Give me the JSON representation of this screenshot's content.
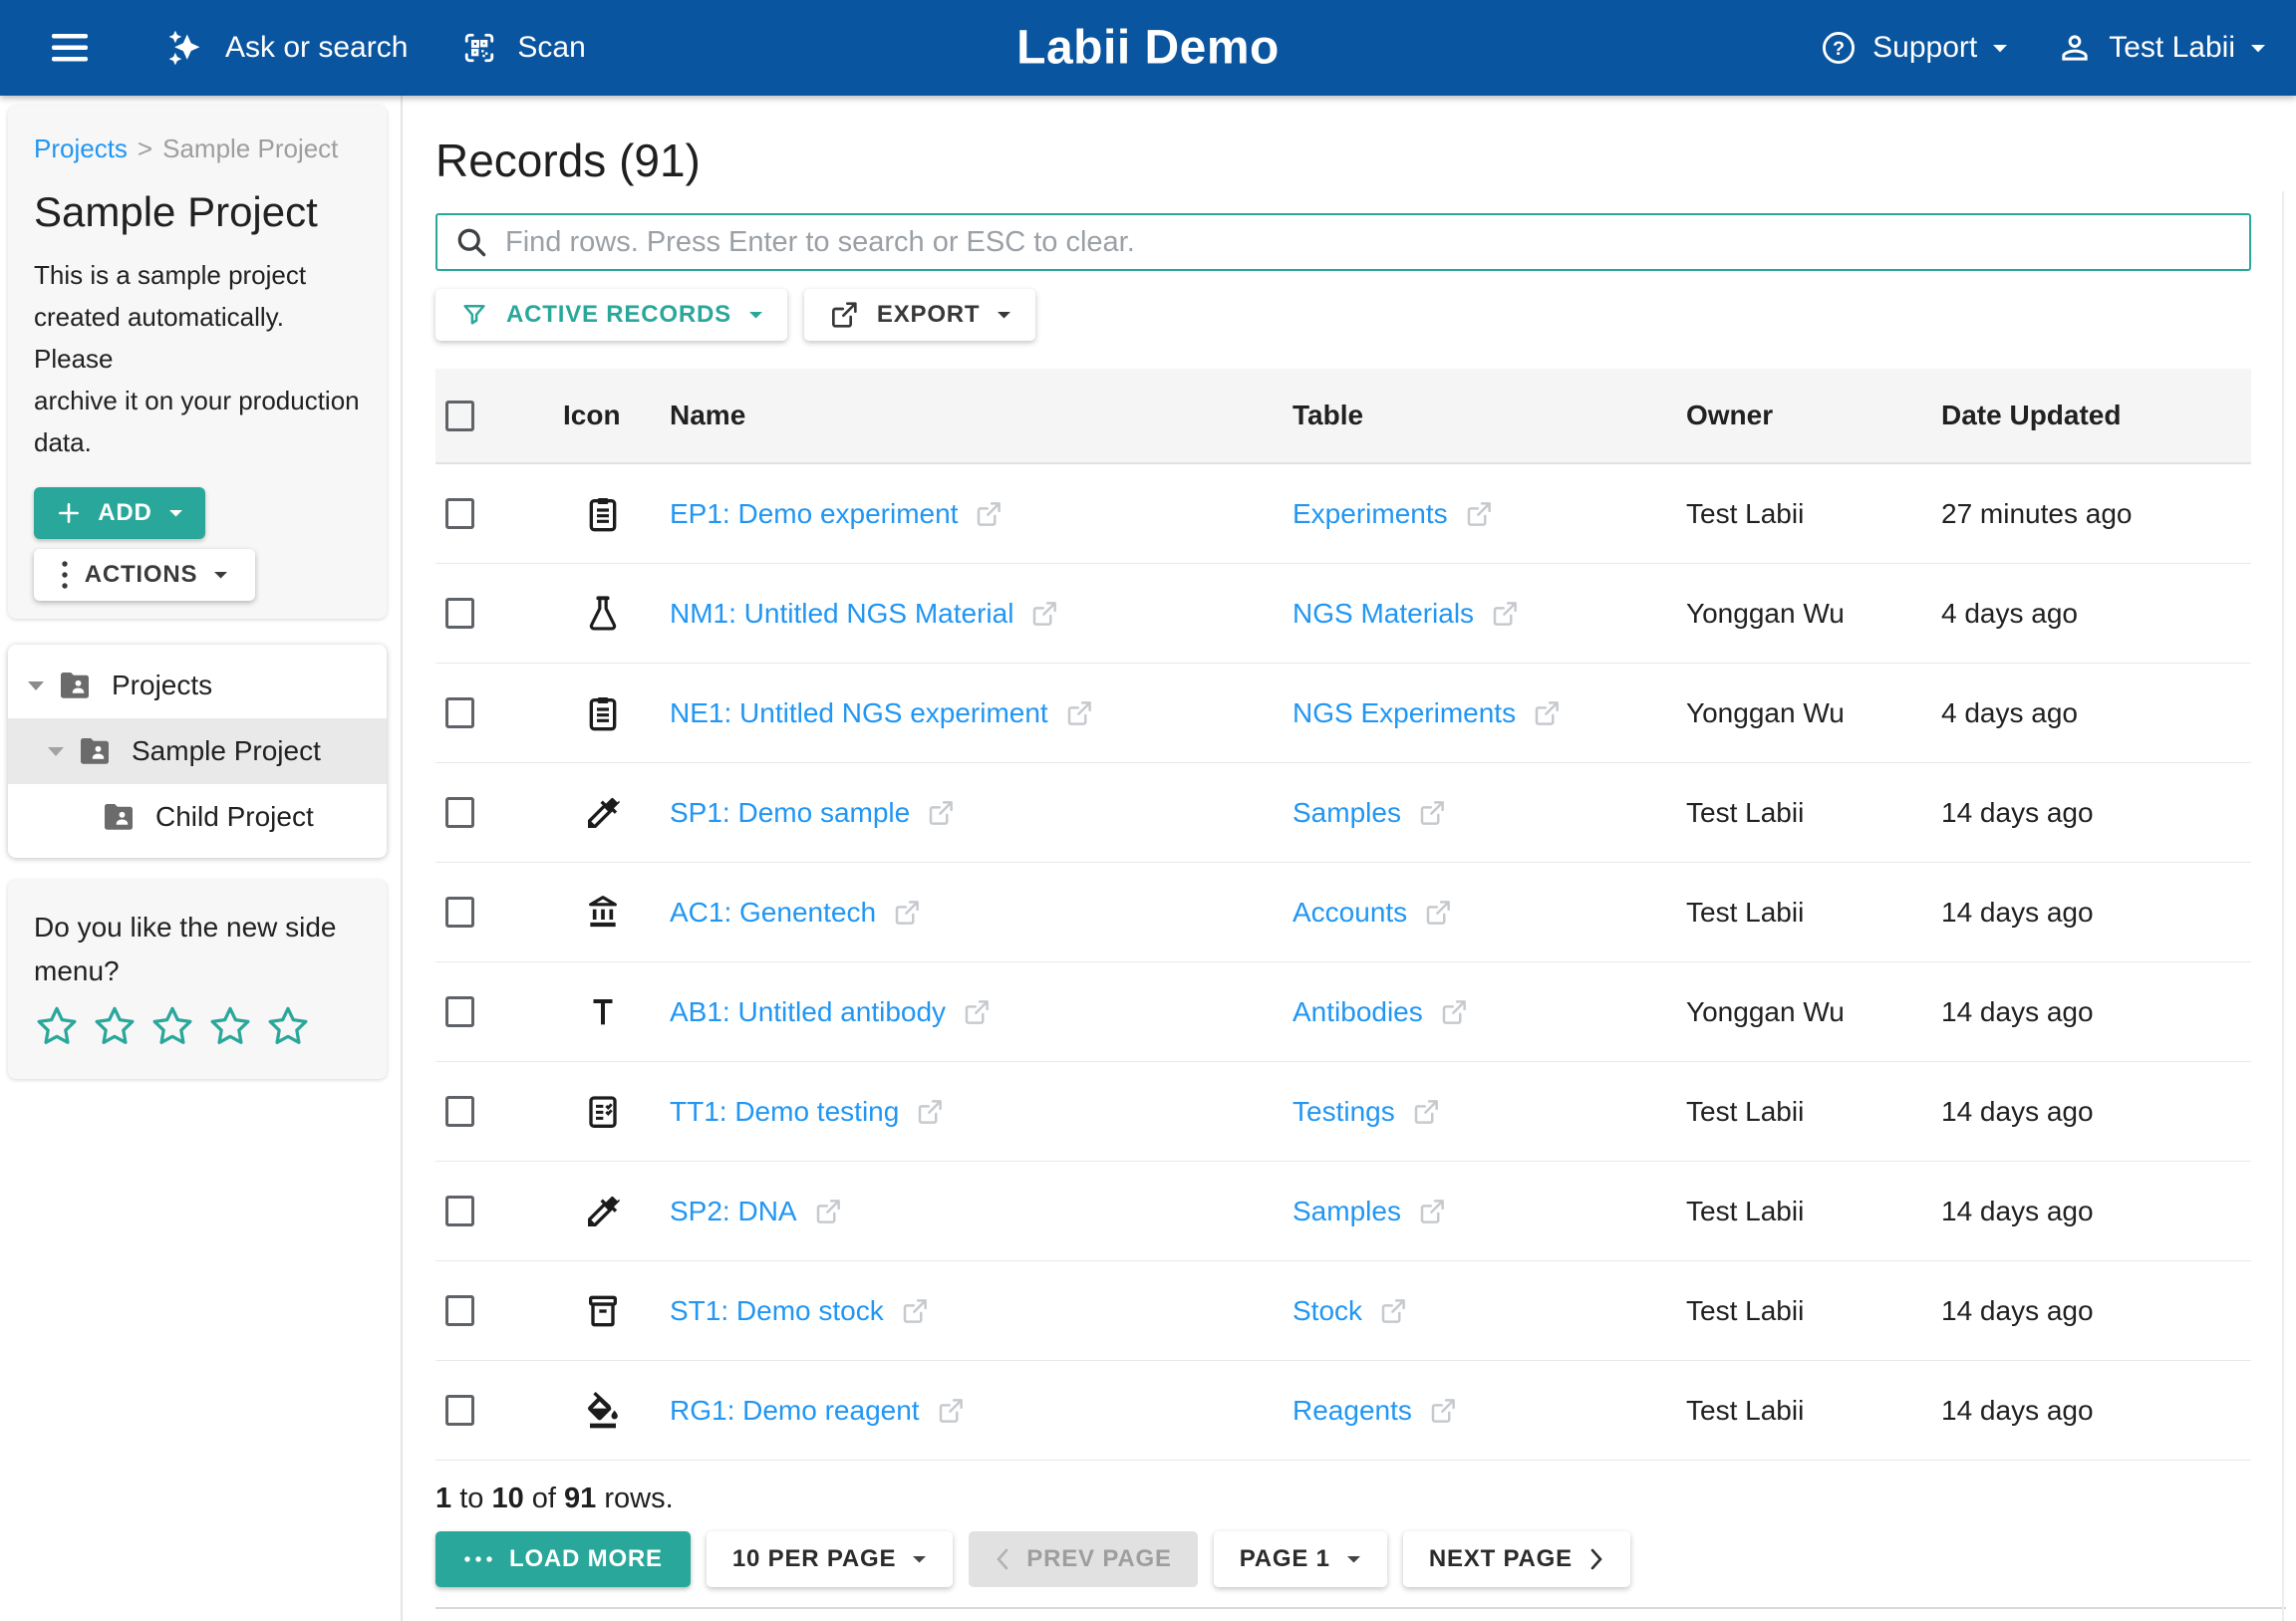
{
  "navbar": {
    "title": "Labii Demo",
    "ask_or_search": "Ask or search",
    "scan": "Scan",
    "support": "Support",
    "user": "Test Labii"
  },
  "sidebar": {
    "breadcrumb": {
      "root": "Projects",
      "separator": ">",
      "current": "Sample Project"
    },
    "project": {
      "title": "Sample Project",
      "description_lines": [
        "This is a sample project",
        "created automatically. Please",
        "archive it on your production",
        "data."
      ]
    },
    "add_button": "ADD",
    "actions_button": "ACTIONS",
    "tree": [
      {
        "label": "Projects",
        "level": 0,
        "expanded": true,
        "selected": false
      },
      {
        "label": "Sample Project",
        "level": 1,
        "expanded": true,
        "selected": true
      },
      {
        "label": "Child Project",
        "level": 2,
        "expanded": false,
        "selected": false
      }
    ],
    "feedback": {
      "question": "Do you like the new side menu?",
      "stars": 5,
      "rating": 0
    }
  },
  "main": {
    "heading": "Records (91)",
    "search": {
      "placeholder": "Find rows. Press Enter to search or ESC to clear."
    },
    "filter_button": "ACTIVE RECORDS",
    "export_button": "EXPORT",
    "table": {
      "columns": [
        "Icon",
        "Name",
        "Table",
        "Owner",
        "Date Updated"
      ],
      "rows": [
        {
          "icon": "clipboard",
          "name": "EP1: Demo experiment",
          "table": "Experiments",
          "owner": "Test Labii",
          "updated": "27 minutes ago"
        },
        {
          "icon": "flask",
          "name": "NM1: Untitled NGS Material",
          "table": "NGS Materials",
          "owner": "Yonggan Wu",
          "updated": "4 days ago"
        },
        {
          "icon": "clipboard",
          "name": "NE1: Untitled NGS experiment",
          "table": "NGS Experiments",
          "owner": "Yonggan Wu",
          "updated": "4 days ago"
        },
        {
          "icon": "eyedropper",
          "name": "SP1: Demo sample",
          "table": "Samples",
          "owner": "Test Labii",
          "updated": "14 days ago"
        },
        {
          "icon": "bank",
          "name": "AC1: Genentech",
          "table": "Accounts",
          "owner": "Test Labii",
          "updated": "14 days ago"
        },
        {
          "icon": "antibody",
          "name": "AB1: Untitled antibody",
          "table": "Antibodies",
          "owner": "Yonggan Wu",
          "updated": "14 days ago"
        },
        {
          "icon": "checklist",
          "name": "TT1: Demo testing",
          "table": "Testings",
          "owner": "Test Labii",
          "updated": "14 days ago"
        },
        {
          "icon": "eyedropper",
          "name": "SP2: DNA",
          "table": "Samples",
          "owner": "Test Labii",
          "updated": "14 days ago"
        },
        {
          "icon": "jar",
          "name": "ST1: Demo stock",
          "table": "Stock",
          "owner": "Test Labii",
          "updated": "14 days ago"
        },
        {
          "icon": "drop",
          "name": "RG1: Demo reagent",
          "table": "Reagents",
          "owner": "Test Labii",
          "updated": "14 days ago"
        }
      ]
    },
    "footer": {
      "range_start": "1",
      "to_word": "to",
      "range_end": "10",
      "of_word": "of",
      "total": "91",
      "rows_word": "rows.",
      "load_more": "LOAD MORE",
      "per_page": "10 PER PAGE",
      "prev": "PREV PAGE",
      "page": "PAGE 1",
      "next": "NEXT PAGE"
    }
  },
  "colors": {
    "navbar_blue": "#0a559f",
    "accent_teal": "#2aa79b",
    "link_blue": "#2196f3",
    "header_bg": "#f5f5f5",
    "card_bg": "#f7f7f7",
    "selected_row": "#e9e9e9",
    "disabled_bg": "#e1e1e1"
  }
}
